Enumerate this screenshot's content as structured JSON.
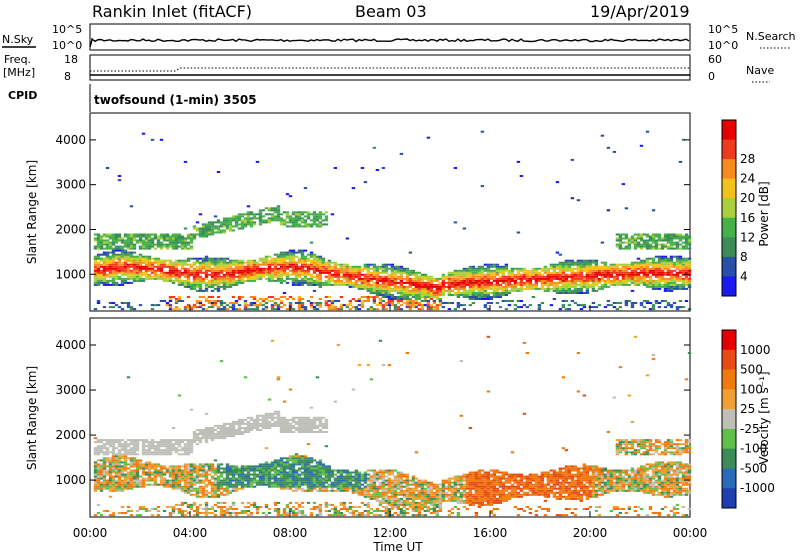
{
  "header": {
    "station": "Rankin Inlet (fitACF)",
    "beam": "Beam 03",
    "date": "19/Apr/2019"
  },
  "top_panels": {
    "nsky_label": "N.Sky",
    "nsearch_label": "N.Search",
    "nsky_ticks": [
      "10^5",
      "10^0"
    ],
    "nsearch_ticks": [
      "10^5",
      "10^0"
    ],
    "freq_label_1": "Freq.",
    "freq_label_2": "[MHz]",
    "freq_ticks": [
      "18",
      "8"
    ],
    "nave_label": "Nave",
    "nave_ticks": [
      "60",
      "0"
    ],
    "cpid_label": "CPID",
    "cpid_value": "twofsound (1-min) 3505"
  },
  "chart_data": [
    {
      "type": "heatmap",
      "name": "power",
      "ylabel": "Slant Range [km]",
      "ylim": [
        180,
        4600
      ],
      "yticks": [
        1000,
        2000,
        3000,
        4000
      ],
      "xlim": [
        0,
        24
      ],
      "xticks": [
        "00:00",
        "04:00",
        "08:00",
        "12:00",
        "16:00",
        "20:00",
        "00:00"
      ],
      "colorbar_label": "Power [dB]",
      "colorbar_ticks": [
        "4",
        "8",
        "12",
        "16",
        "20",
        "24",
        "28"
      ],
      "colors": [
        "#1a1aee",
        "#2a4fa8",
        "#3c8c5a",
        "#46b04a",
        "#a8cf3c",
        "#f2c21c",
        "#f68b1f",
        "#ee3a1e",
        "#e60000"
      ]
    },
    {
      "type": "heatmap",
      "name": "velocity",
      "ylabel": "Slant Range [km]",
      "ylim": [
        180,
        4600
      ],
      "yticks": [
        1000,
        2000,
        3000,
        4000
      ],
      "xlim": [
        0,
        24
      ],
      "xticks": [
        "00:00",
        "04:00",
        "08:00",
        "12:00",
        "16:00",
        "20:00",
        "00:00"
      ],
      "xlabel": "Time UT",
      "colorbar_label": "Velocity [m s⁻¹]",
      "colorbar_ticks": [
        "1000",
        "500",
        "100",
        "25",
        "-25",
        "-100",
        "-500",
        "-1000"
      ],
      "colors": [
        "#1f3fb0",
        "#2a6cb8",
        "#3c8c5a",
        "#5fbf4a",
        "#bfbfb8",
        "#f0a030",
        "#f07a10",
        "#e84a14",
        "#e60000"
      ]
    }
  ]
}
